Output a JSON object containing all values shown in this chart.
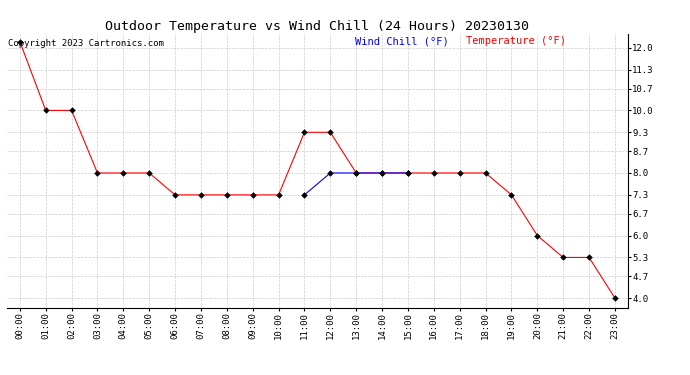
{
  "title": "Outdoor Temperature vs Wind Chill (24 Hours) 20230130",
  "copyright": "Copyright 2023 Cartronics.com",
  "legend_wind_chill": "Wind Chill (°F)",
  "legend_temperature": "Temperature (°F)",
  "x_labels": [
    "00:00",
    "01:00",
    "02:00",
    "03:00",
    "04:00",
    "05:00",
    "06:00",
    "07:00",
    "08:00",
    "09:00",
    "10:00",
    "11:00",
    "12:00",
    "13:00",
    "14:00",
    "15:00",
    "16:00",
    "17:00",
    "18:00",
    "19:00",
    "20:00",
    "21:00",
    "22:00",
    "23:00"
  ],
  "temperature": [
    12.2,
    10.0,
    10.0,
    8.0,
    8.0,
    8.0,
    7.3,
    7.3,
    7.3,
    7.3,
    7.3,
    9.3,
    9.3,
    8.0,
    8.0,
    8.0,
    8.0,
    8.0,
    8.0,
    7.3,
    6.0,
    5.3,
    5.3,
    4.0
  ],
  "wind_chill": [
    null,
    null,
    null,
    null,
    null,
    null,
    null,
    null,
    null,
    null,
    null,
    7.3,
    8.0,
    8.0,
    8.0,
    8.0,
    null,
    null,
    null,
    null,
    null,
    null,
    null,
    null
  ],
  "temp_color": "#ff0000",
  "wind_color": "#0000ff",
  "background_color": "#ffffff",
  "grid_color": "#cccccc",
  "ylim_min": 3.7,
  "ylim_max": 12.45,
  "yticks": [
    4.0,
    4.7,
    5.3,
    6.0,
    6.7,
    7.3,
    8.0,
    8.7,
    9.3,
    10.0,
    10.7,
    11.3,
    12.0
  ],
  "title_fontsize": 9.5,
  "label_fontsize": 6.5,
  "copyright_fontsize": 6.5,
  "legend_fontsize": 7.5,
  "markersize": 3
}
